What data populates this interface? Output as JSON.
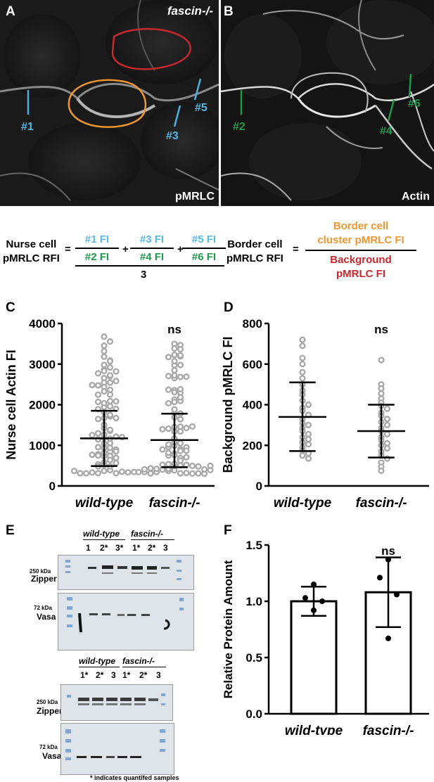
{
  "panels": {
    "A": {
      "letter": "A",
      "genotype": "fascin-/-",
      "stain": "pMRLC",
      "lines": [
        "#1",
        "#3",
        "#5"
      ]
    },
    "B": {
      "letter": "B",
      "stain": "Actin",
      "lines": [
        "#2",
        "#4",
        "#6"
      ]
    }
  },
  "equations": {
    "nurse": {
      "lhs": [
        "Nurse cell",
        "pMRLC RFI"
      ],
      "fractions": [
        {
          "num": "#1 FI",
          "den": "#2 FI"
        },
        {
          "num": "#3 FI",
          "den": "#4 FI"
        },
        {
          "num": "#5 FI",
          "den": "#6 FI"
        }
      ],
      "plus": "+",
      "equals": "=",
      "divisor": "3"
    },
    "border": {
      "lhs": [
        "Border cell",
        "pMRLC RFI"
      ],
      "equals": "=",
      "num": [
        "Border cell",
        "cluster pMRLC FI"
      ],
      "den": [
        "Background",
        "pMRLC FI"
      ]
    }
  },
  "chart_data": [
    {
      "panel": "C",
      "type": "scatter",
      "categories": [
        "wild-type",
        "fascin-/-"
      ],
      "ylabel": "Nurse cell Actin FI",
      "ylim": [
        0,
        4000
      ],
      "yticks": [
        0,
        1000,
        2000,
        3000,
        4000
      ],
      "significance": "ns",
      "series": [
        {
          "mean": 1170,
          "sd_low": 490,
          "sd_high": 1850
        },
        {
          "mean": 1130,
          "sd_low": 460,
          "sd_high": 1780
        }
      ]
    },
    {
      "panel": "D",
      "type": "scatter",
      "categories": [
        "wild-type",
        "fascin-/-"
      ],
      "ylabel": "Background pMRLC FI",
      "ylim": [
        0,
        800
      ],
      "yticks": [
        0,
        200,
        400,
        600,
        800
      ],
      "significance": "ns",
      "series": [
        {
          "mean": 340,
          "sd_low": 172,
          "sd_high": 510,
          "points": [
            720,
            690,
            630,
            600,
            560,
            530,
            500,
            470,
            450,
            420,
            400,
            385,
            370,
            350,
            330,
            310,
            300,
            285,
            270,
            255,
            240,
            230,
            215,
            205,
            190,
            175,
            160,
            150,
            135
          ]
        },
        {
          "mean": 270,
          "sd_low": 140,
          "sd_high": 400,
          "points": [
            620,
            500,
            480,
            455,
            430,
            410,
            395,
            380,
            360,
            345,
            330,
            315,
            300,
            285,
            270,
            255,
            240,
            225,
            210,
            200,
            185,
            170,
            150,
            135,
            115,
            95,
            75
          ]
        }
      ]
    },
    {
      "panel": "F",
      "type": "bar",
      "categories": [
        "wild-type",
        "fascin-/-"
      ],
      "ylabel": "Relative Protein Amount",
      "ylim": [
        0,
        1.5
      ],
      "yticks": [
        "0.0",
        "0.5",
        "1.0",
        "1.5"
      ],
      "significance": "ns",
      "values": [
        1.0,
        1.08
      ],
      "sd": [
        [
          0.87,
          1.13
        ],
        [
          0.77,
          1.39
        ]
      ],
      "points": [
        [
          1.15,
          1.03,
          1.0,
          0.92
        ],
        [
          1.37,
          1.21,
          1.06,
          0.67
        ]
      ]
    }
  ],
  "blot": {
    "letter": "E",
    "top_header": {
      "wt": "wild-type",
      "fascin": "fascin-/-",
      "lanes": [
        "1",
        "2*",
        "3*",
        "1*",
        "2*",
        "3"
      ]
    },
    "bottom_header": {
      "wt": "wild-type",
      "fascin": "fascin-/-",
      "lanes": [
        "1*",
        "2*",
        "3",
        "1*",
        "2*",
        "3"
      ]
    },
    "zipper_kda": "250 kDa",
    "vasa_kda": "72 kDa",
    "zipper": "Zipper",
    "vasa": "Vasa",
    "footnote": "* indicates quantifed samples"
  },
  "letters": {
    "C": "C",
    "D": "D",
    "F": "F"
  }
}
